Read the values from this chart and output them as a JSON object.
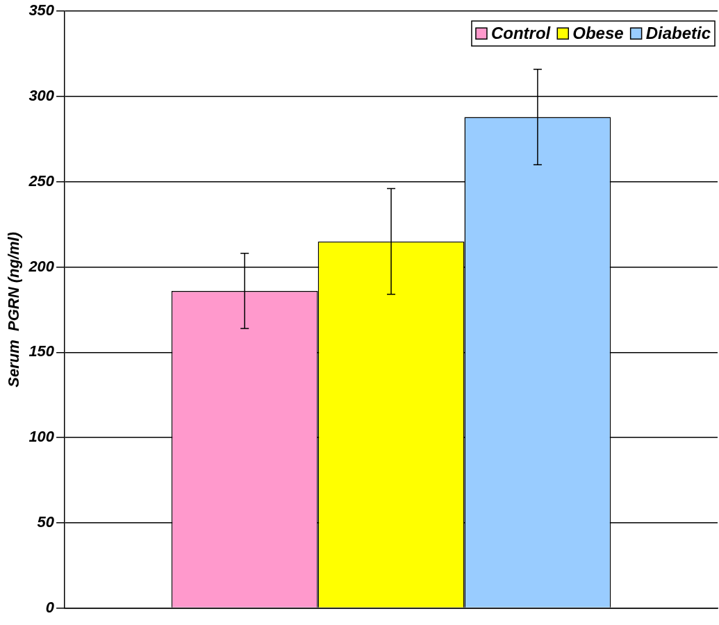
{
  "chart_data": {
    "type": "bar",
    "ylabel": "Serum  PGRN (ng/ml)",
    "categories": [
      null
    ],
    "series": [
      {
        "name": "Control",
        "color": "#ff99cc",
        "values": [
          186
        ],
        "errors": [
          22
        ]
      },
      {
        "name": "Obese",
        "color": "#ffff00",
        "values": [
          215
        ],
        "errors": [
          31
        ]
      },
      {
        "name": "Diabetic",
        "color": "#99ccff",
        "values": [
          288
        ],
        "errors": [
          28
        ]
      }
    ],
    "ylim": [
      0,
      350
    ],
    "yticks": [
      0,
      50,
      100,
      150,
      200,
      250,
      300,
      350
    ],
    "grid": "y",
    "legend": "top right"
  }
}
